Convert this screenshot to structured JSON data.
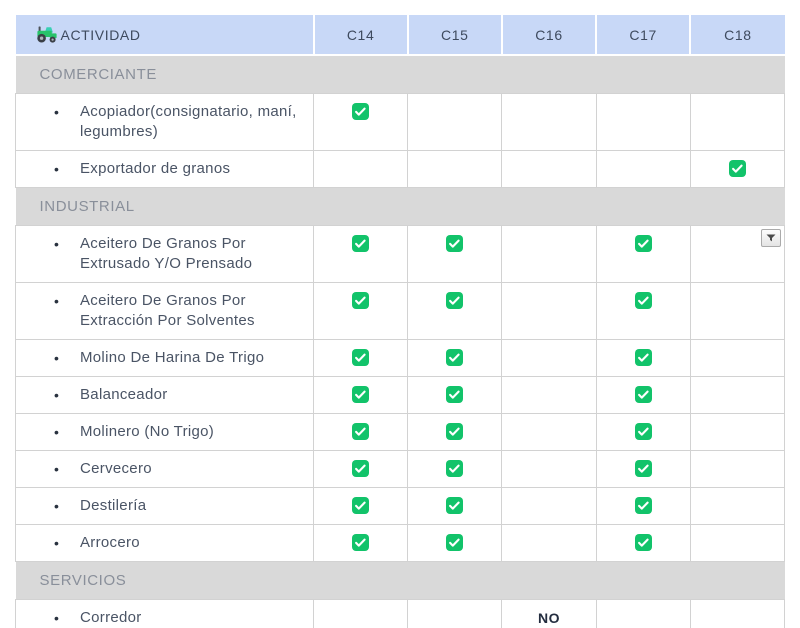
{
  "header": {
    "activity": {
      "label": "ACTIVIDAD",
      "icon": "tractor-icon"
    },
    "columns": [
      "C14",
      "C15",
      "C16",
      "C17",
      "C18"
    ]
  },
  "icons": {
    "bullet_glyph": "•"
  },
  "sections": [
    {
      "title": "COMERCIANTE",
      "rows": [
        {
          "label": "Acopiador(consignatario, maní, legumbres)",
          "cells": [
            "checked",
            "",
            "",
            "",
            ""
          ]
        },
        {
          "label": "Exportador de granos",
          "cells": [
            "",
            "",
            "",
            "",
            "checked"
          ]
        }
      ]
    },
    {
      "title": "INDUSTRIAL",
      "rows": [
        {
          "label": "Aceitero De Granos Por Extrusado Y/O Prensado",
          "cells": [
            "checked",
            "checked",
            "",
            "checked",
            "filter-dropdown"
          ]
        },
        {
          "label": "Aceitero De Granos Por Extracción Por Solventes",
          "cells": [
            "checked",
            "checked",
            "",
            "checked",
            ""
          ]
        },
        {
          "label": "Molino De Harina De Trigo",
          "cells": [
            "checked",
            "checked",
            "",
            "checked",
            ""
          ]
        },
        {
          "label": "Balanceador",
          "cells": [
            "checked",
            "checked",
            "",
            "checked",
            ""
          ]
        },
        {
          "label": "Molinero (No Trigo)",
          "cells": [
            "checked",
            "checked",
            "",
            "checked",
            ""
          ]
        },
        {
          "label": "Cervecero",
          "cells": [
            "checked",
            "checked",
            "",
            "checked",
            ""
          ]
        },
        {
          "label": "Destilería",
          "cells": [
            "checked",
            "checked",
            "",
            "checked",
            ""
          ]
        },
        {
          "label": "Arrocero",
          "cells": [
            "checked",
            "checked",
            "",
            "checked",
            ""
          ]
        }
      ]
    },
    {
      "title": "SERVICIOS",
      "rows": [
        {
          "label": "Corredor",
          "cells": [
            "",
            "",
            "NO",
            "",
            ""
          ]
        }
      ]
    }
  ],
  "colors": {
    "header_bg": "#c8d8f7",
    "section_bg": "#d9d9d9",
    "check_green": "#12c36a",
    "border": "#d2d2d2",
    "body_text": "#4a5465",
    "section_text": "#898f9a",
    "header_text": "#3e4a5e"
  }
}
